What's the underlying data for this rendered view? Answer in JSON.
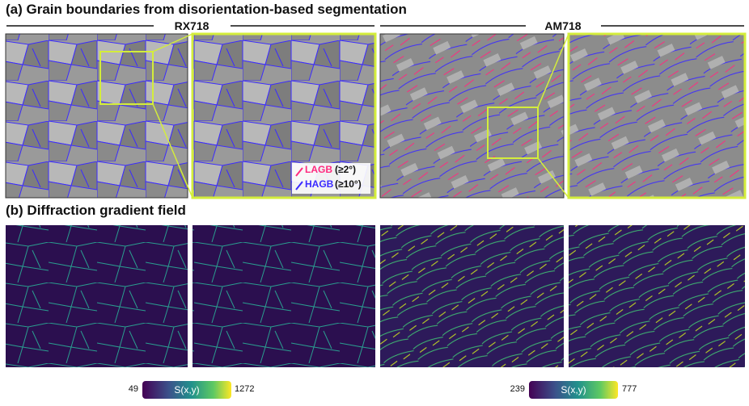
{
  "panel_a": {
    "title": "(a) Grain boundaries from disorientation-based segmentation",
    "groups": [
      "RX718",
      "AM718"
    ],
    "legend": [
      {
        "name": "LAGB",
        "detail": "(≥2°)",
        "color": "#ff2a7f"
      },
      {
        "name": "HAGB",
        "detail": "(≥10°)",
        "color": "#3b2bff"
      }
    ]
  },
  "panel_b": {
    "title": "(b) Diffraction gradient field",
    "colorbars": [
      {
        "min": "49",
        "label": "S(x,y)",
        "max": "1272"
      },
      {
        "min": "239",
        "label": "S(x,y)",
        "max": "777"
      }
    ]
  }
}
